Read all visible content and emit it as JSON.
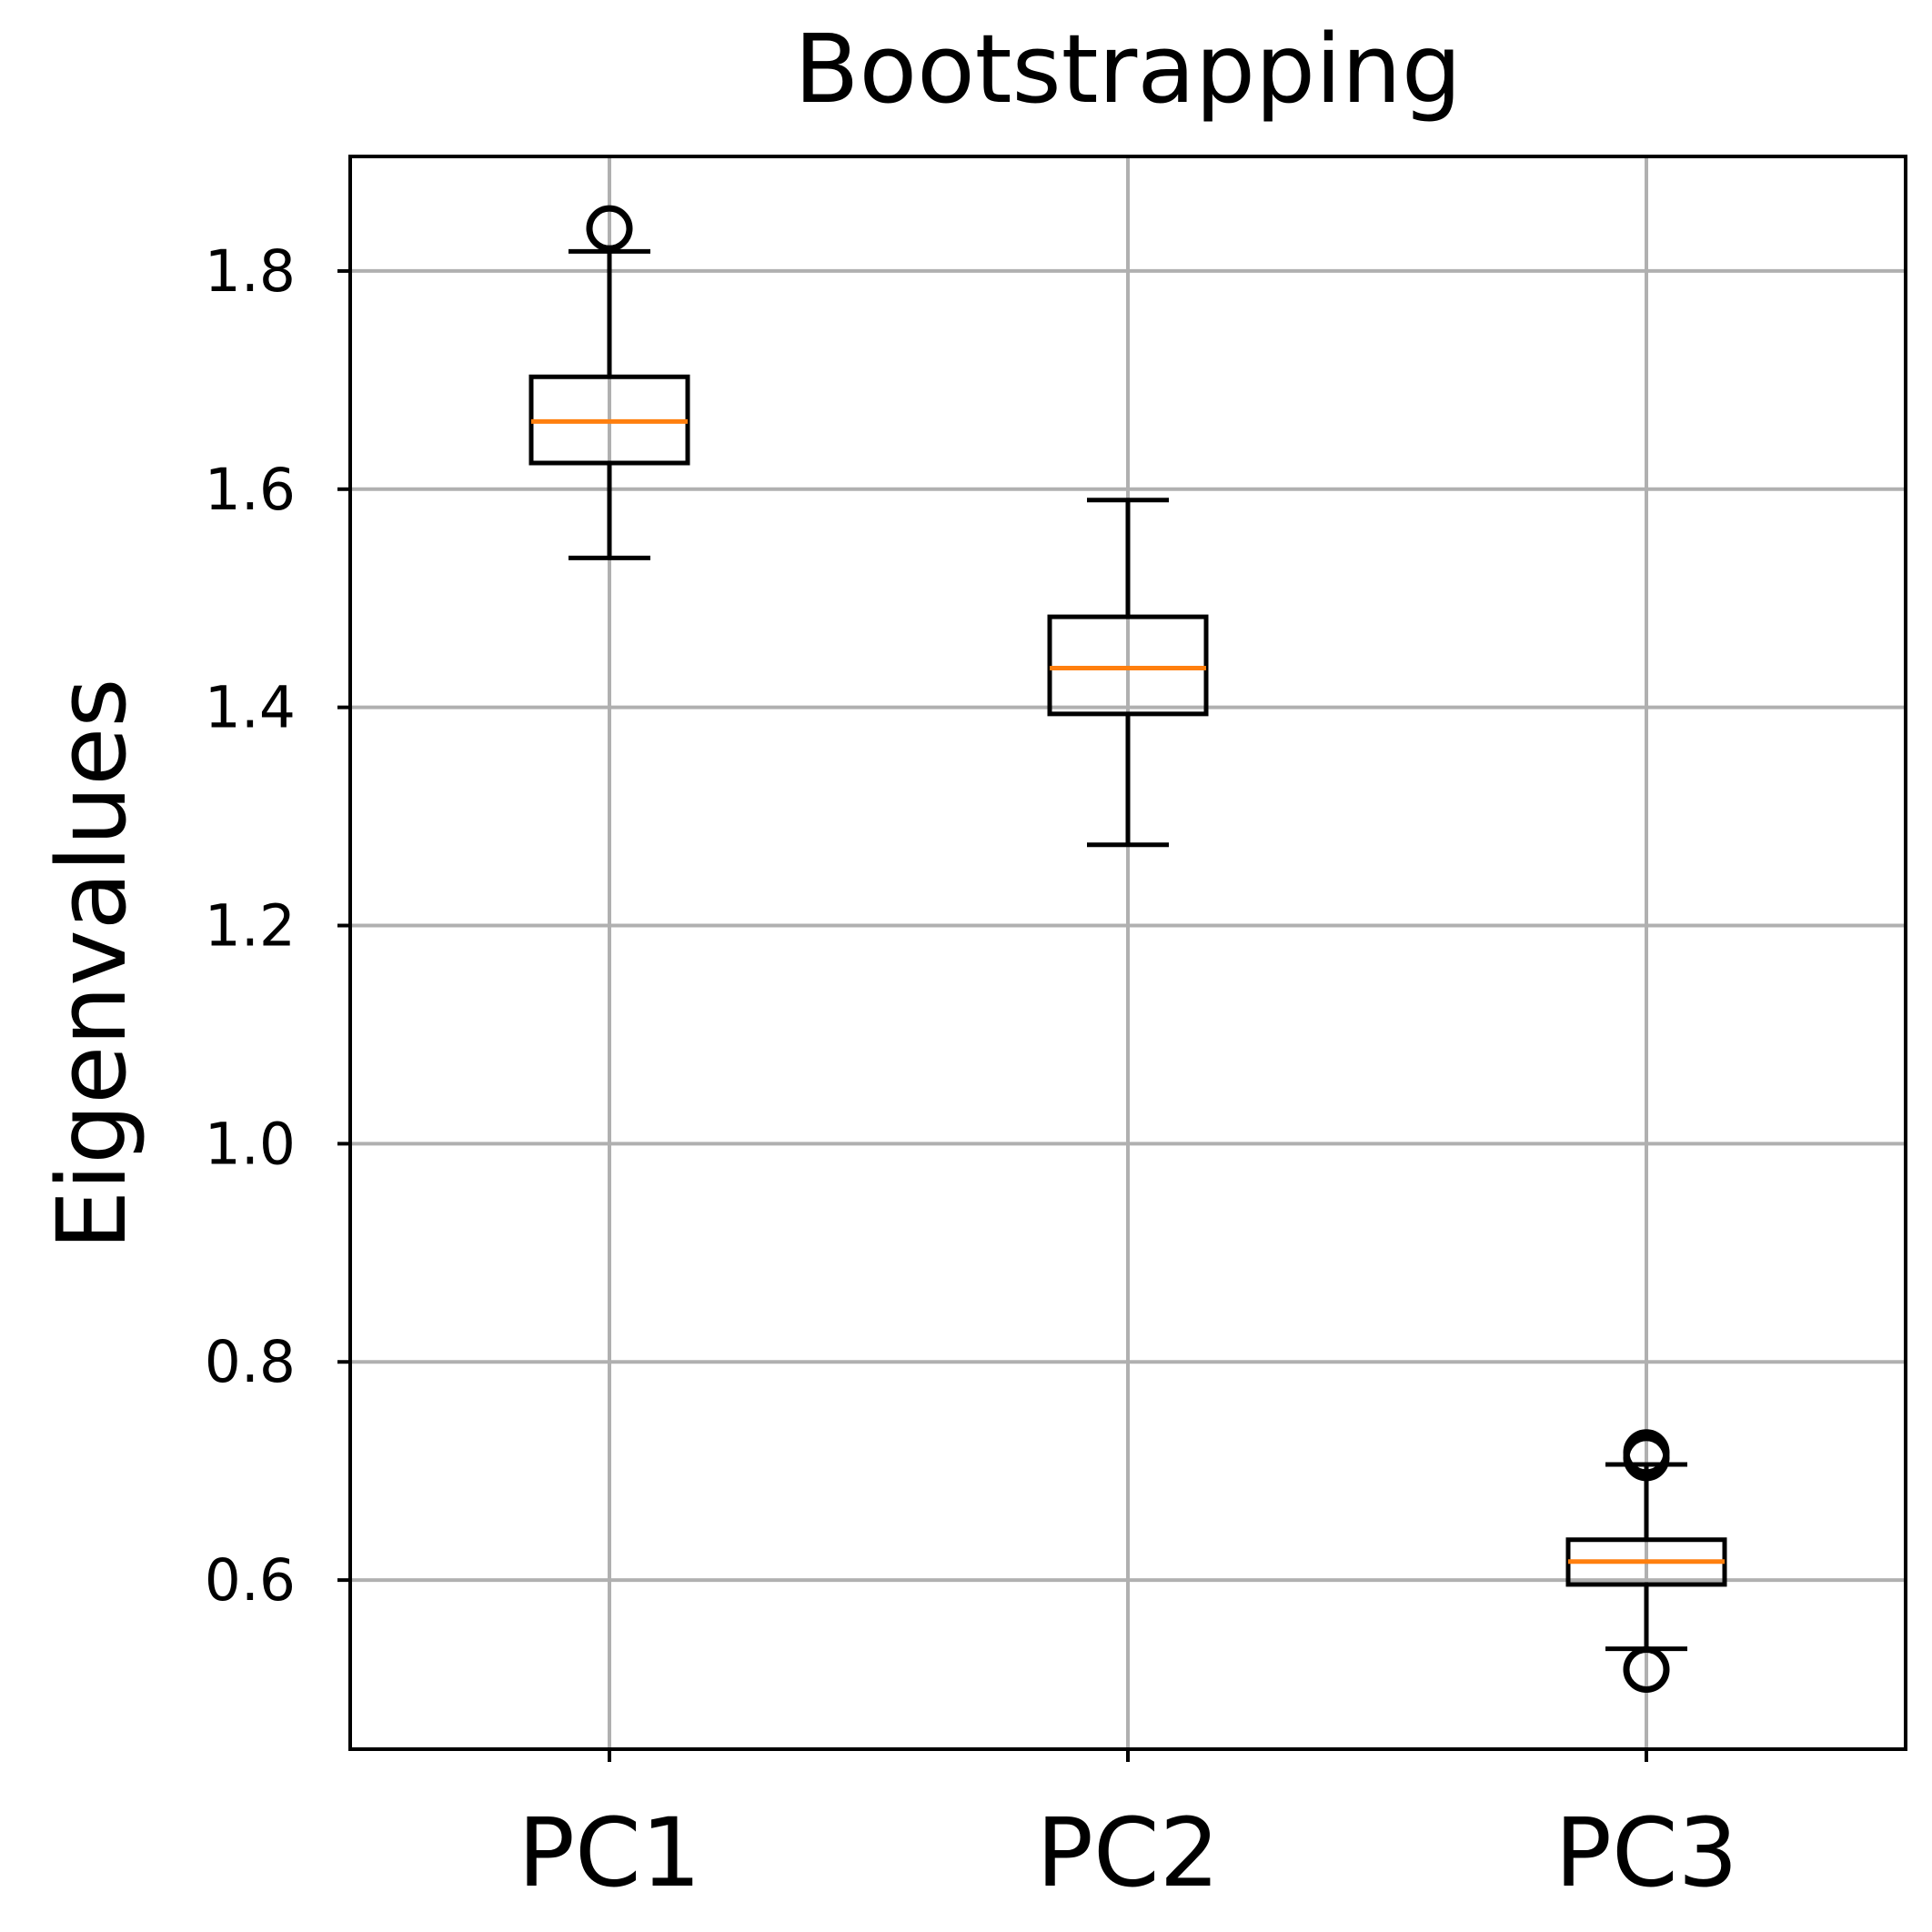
{
  "chart_data": {
    "type": "box",
    "title": "Bootstrapping",
    "xlabel": "",
    "ylabel": "Eigenvalues",
    "categories": [
      "PC1",
      "PC2",
      "PC3"
    ],
    "ylim": [
      0.445,
      1.905
    ],
    "yticks": [
      0.6,
      0.8,
      1.0,
      1.2,
      1.4,
      1.6,
      1.8
    ],
    "ytick_labels": [
      "0.6",
      "0.8",
      "1.0",
      "1.2",
      "1.4",
      "1.6",
      "1.8"
    ],
    "grid": true,
    "median_color": "#ff7f0e",
    "box_color": "#000000",
    "grid_color": "#b0b0b0",
    "boxes": [
      {
        "category": "PC1",
        "whisker_low": 1.537,
        "q1": 1.624,
        "median": 1.662,
        "q3": 1.703,
        "whisker_high": 1.818,
        "fliers": [
          1.839
        ]
      },
      {
        "category": "PC2",
        "whisker_low": 1.274,
        "q1": 1.394,
        "median": 1.436,
        "q3": 1.483,
        "whisker_high": 1.59,
        "fliers": []
      },
      {
        "category": "PC3",
        "whisker_low": 0.537,
        "q1": 0.596,
        "median": 0.617,
        "q3": 0.637,
        "whisker_high": 0.706,
        "fliers": [
          0.518,
          0.712,
          0.717
        ]
      }
    ]
  }
}
